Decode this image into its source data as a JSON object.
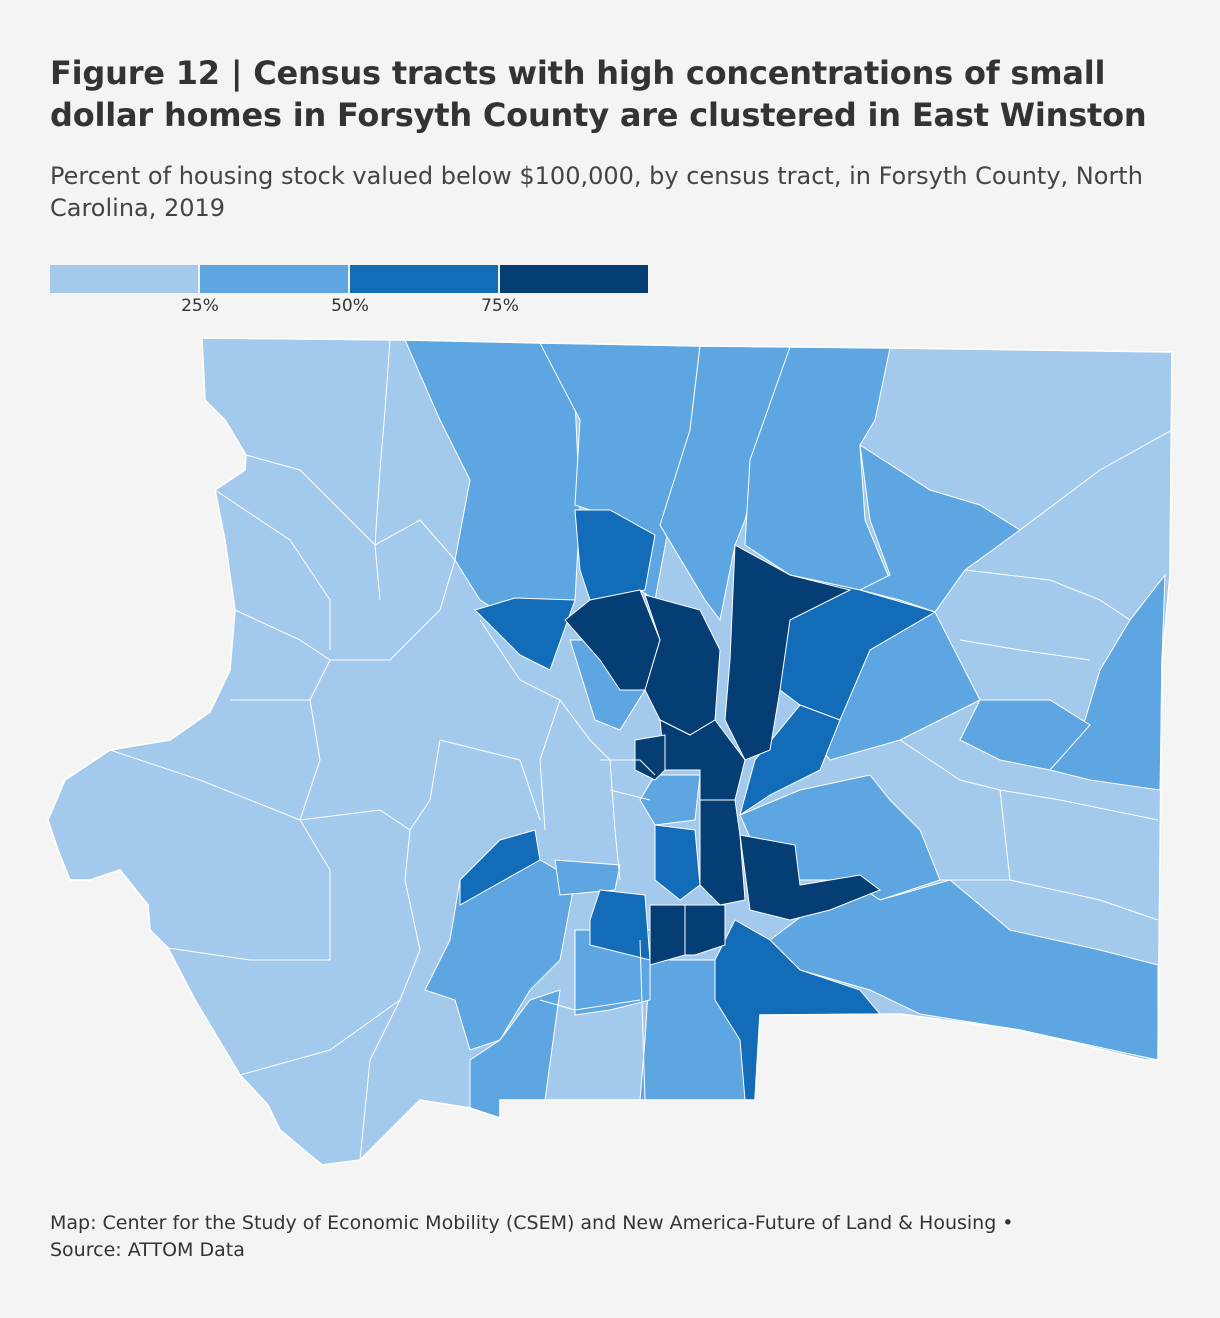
{
  "title": "Figure 12 | Census tracts with high concentrations of small dollar homes in Forsyth County are clustered in East Winston",
  "subtitle": "Percent of housing stock valued below $100,000, by census tract, in Forsyth County, North Carolina, 2019",
  "legend": {
    "bins": [
      {
        "range": [
          0,
          25
        ],
        "color": "#a3caec"
      },
      {
        "range": [
          25,
          50
        ],
        "color": "#5ea6e2"
      },
      {
        "range": [
          50,
          75
        ],
        "color": "#126cb8"
      },
      {
        "range": [
          75,
          100
        ],
        "color": "#043e74"
      }
    ],
    "ticks": [
      "25%",
      "50%",
      "75%"
    ]
  },
  "footer": {
    "credit": "Map: Center for the Study of Economic Mobility (CSEM) and New America-Future of Land & Housing •",
    "source": "Source: ATTOM Data"
  }
}
